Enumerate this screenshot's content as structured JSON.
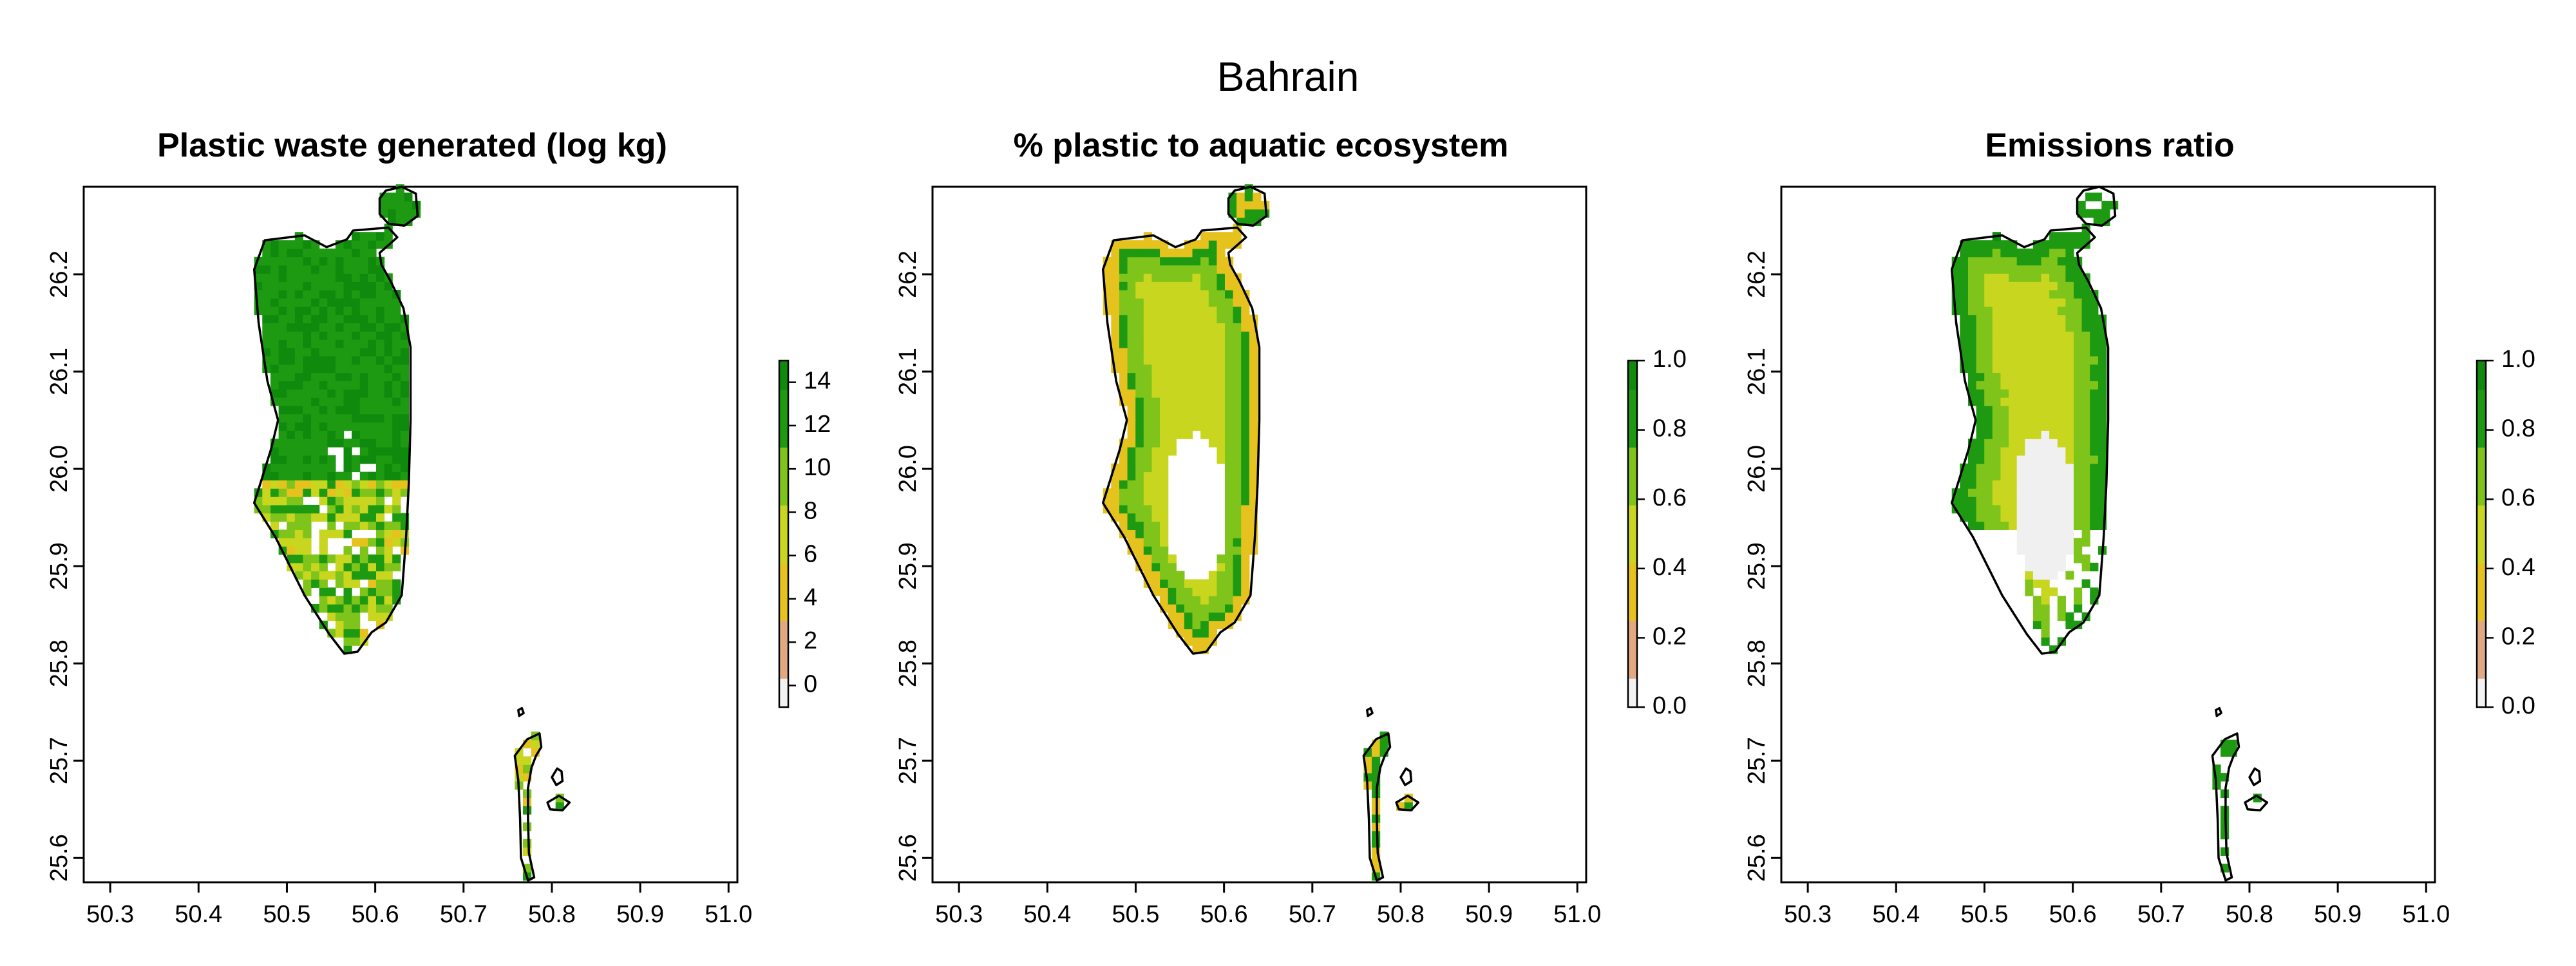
{
  "figure": {
    "title": "Bahrain"
  },
  "colors": {
    "scale": [
      "#F2F2F2",
      "#E0A982",
      "#E6C21F",
      "#C9D61F",
      "#7FC41A",
      "#1E9A12",
      "#0F8A0D"
    ],
    "na_fill": "#F0F0F0"
  },
  "panels": [
    {
      "title": "Plastic waste generated (log kg)",
      "legend": {
        "ticks": [
          "14",
          "12",
          "10",
          "8",
          "6",
          "4",
          "2",
          "0"
        ],
        "min": -1,
        "max": 15
      }
    },
    {
      "title": "% plastic to aquatic ecosystem",
      "legend": {
        "ticks": [
          "1.0",
          "0.8",
          "0.6",
          "0.4",
          "0.2",
          "0.0"
        ],
        "min": 0,
        "max": 1
      }
    },
    {
      "title": "Emissions ratio",
      "legend": {
        "ticks": [
          "1.0",
          "0.8",
          "0.6",
          "0.4",
          "0.2",
          "0.0"
        ],
        "min": 0,
        "max": 1
      }
    }
  ],
  "axes": {
    "x_ticks": [
      "50.3",
      "50.4",
      "50.5",
      "50.6",
      "50.7",
      "50.8",
      "50.9",
      "51.0"
    ],
    "y_ticks": [
      "26.2",
      "26.1",
      "26.0",
      "25.9",
      "25.8",
      "25.7",
      "25.6"
    ],
    "xlim": [
      50.27,
      51.01
    ],
    "ylim": [
      25.575,
      26.29
    ]
  },
  "chart_data": [
    {
      "type": "heatmap",
      "title": "Plastic waste generated (log kg)",
      "region": "Bahrain",
      "xlim": [
        50.27,
        51.01
      ],
      "ylim": [
        25.575,
        26.29
      ],
      "zlim": [
        -1,
        15
      ]
    },
    {
      "type": "heatmap",
      "title": "% plastic to aquatic ecosystem",
      "region": "Bahrain",
      "xlim": [
        50.27,
        51.01
      ],
      "ylim": [
        25.575,
        26.29
      ],
      "zlim": [
        0,
        1
      ]
    },
    {
      "type": "heatmap",
      "title": "Emissions ratio",
      "region": "Bahrain",
      "xlim": [
        50.27,
        51.01
      ],
      "ylim": [
        25.575,
        26.29
      ],
      "zlim": [
        0,
        1
      ]
    }
  ]
}
